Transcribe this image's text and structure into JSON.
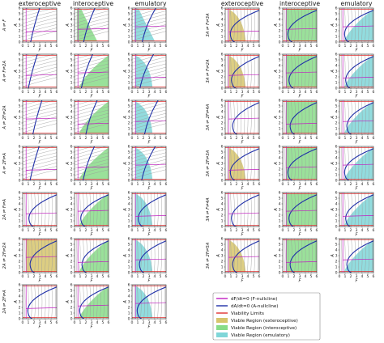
{
  "chart_data": {
    "type": "phase-portrait-grid",
    "column_titles": [
      "exteroceptive",
      "interoceptive",
      "emulatory"
    ],
    "left_block_rows": [
      "A ⇌ F",
      "A ⇌ F⇌2A",
      "A ⇌ 2F⇌2A",
      "A ⇌ 2F⇌A",
      "2A ⇌ F⇌A",
      "2A ⇌ 2F⇌2A",
      "2A ⇌ 2F⇌A"
    ],
    "right_block_rows": [
      "3A ⇌ F⇌3A",
      "3A ⇌ F⇌2A",
      "3A ⇌ 2F⇌4A",
      "3A ⇌ 2F⇌3A",
      "3A ⇌ F⇌4A",
      "3A ⇌ 2F⇌5A"
    ],
    "x_ticks": [
      "0",
      "1",
      "2",
      "3",
      "4",
      "5",
      "6"
    ],
    "y_ticks": [
      "0",
      "1",
      "2",
      "3",
      "4",
      "5",
      "6"
    ],
    "xlabel": "F",
    "ylabel": "A",
    "xlim": [
      0,
      6
    ],
    "ylim": [
      0,
      6
    ],
    "legend": [
      {
        "label": "dF/dt=0 (F-nullcline)",
        "kind": "line",
        "color": "#c020c0"
      },
      {
        "label": "dA/dt=0 (A-nullcline)",
        "kind": "line",
        "color": "#1f2fa8"
      },
      {
        "label": "Viability Limits",
        "kind": "line",
        "color": "#e03030"
      },
      {
        "label": "Viable Region (exteroceptive)",
        "kind": "patch",
        "color": "#d7c56c"
      },
      {
        "label": "Viable Region (interoceptive)",
        "kind": "patch",
        "color": "#88dc88"
      },
      {
        "label": "Viable Region (emulatory)",
        "kind": "patch",
        "color": "#7fd6d8"
      }
    ],
    "viability_limits_A": [
      0.2,
      5.8
    ],
    "colors": {
      "extero": "#d7c56c",
      "intero": "#88dc88",
      "emul": "#7fd6d8",
      "fnull": "#c020c0",
      "anull": "#1f2fa8",
      "limit": "#e03030",
      "stream": "#9a9a9a"
    },
    "panel_grid": {
      "left_rows": 7,
      "right_rows": 6,
      "columns": 3
    }
  }
}
